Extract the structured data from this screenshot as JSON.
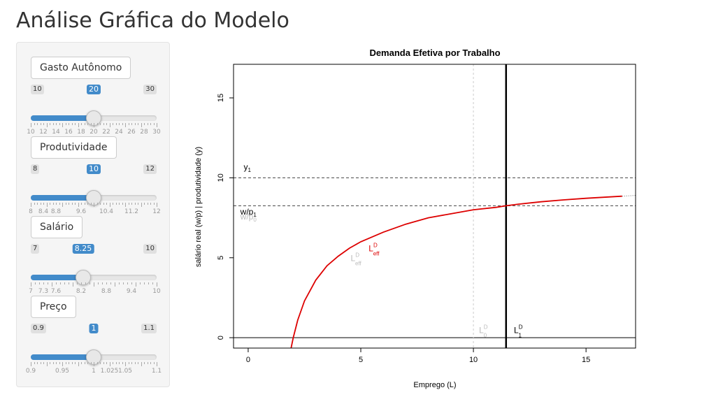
{
  "page": {
    "title": "Análise Gráfica do Modelo"
  },
  "sliders": [
    {
      "label": "Gasto Autônomo",
      "min": 10,
      "max": 30,
      "value": 20,
      "min_label": "10",
      "max_label": "30",
      "value_label": "20",
      "tick_labels": [
        [
          "10",
          10
        ],
        [
          "12",
          12
        ],
        [
          "14",
          14
        ],
        [
          "16",
          16
        ],
        [
          "18",
          18
        ],
        [
          "20",
          20
        ],
        [
          "22",
          22
        ],
        [
          "24",
          24
        ],
        [
          "26",
          26
        ],
        [
          "28",
          28
        ],
        [
          "30",
          30
        ]
      ],
      "minor_ticks": 40
    },
    {
      "label": "Produtividade",
      "min": 8,
      "max": 12,
      "value": 10,
      "min_label": "8",
      "max_label": "12",
      "value_label": "10",
      "tick_labels": [
        [
          "8",
          8
        ],
        [
          "8.4",
          8.4
        ],
        [
          "8.8",
          8.8
        ],
        [
          "9.6",
          9.6
        ],
        [
          "10.4",
          10.4
        ],
        [
          "11.2",
          11.2
        ],
        [
          "12",
          12
        ]
      ],
      "minor_ticks": 40
    },
    {
      "label": "Salário",
      "min": 7,
      "max": 10,
      "value": 8.25,
      "min_label": "7",
      "max_label": "10",
      "value_label": "8.25",
      "tick_labels": [
        [
          "7",
          7
        ],
        [
          "7.3",
          7.3
        ],
        [
          "7.6",
          7.6
        ],
        [
          "8.2",
          8.2
        ],
        [
          "8.8",
          8.8
        ],
        [
          "9.4",
          9.4
        ],
        [
          "10",
          10
        ]
      ],
      "minor_ticks": 30
    },
    {
      "label": "Preço",
      "min": 0.9,
      "max": 1.1,
      "value": 1,
      "min_label": "0.9",
      "max_label": "1.1",
      "value_label": "1",
      "tick_labels": [
        [
          "0.9",
          0.9
        ],
        [
          "0.95",
          0.95
        ],
        [
          "1",
          1.0
        ],
        [
          "1.025",
          1.025
        ],
        [
          "1.05",
          1.05
        ],
        [
          "1.1",
          1.1
        ]
      ],
      "minor_ticks": 40
    }
  ],
  "chart_data": {
    "type": "line",
    "title": "Demanda Efetiva por Trabalho",
    "xlabel": "Emprego (L)",
    "ylabel": "salário real (w/p) | produtividade (y)",
    "xlim": [
      -0.65,
      17.2
    ],
    "ylim": [
      -0.65,
      17.1
    ],
    "xticks": [
      0,
      5,
      10,
      15
    ],
    "yticks": [
      0,
      5,
      10,
      15
    ],
    "series": [
      {
        "color": "#dd0000",
        "points": [
          [
            1.9,
            -0.7
          ],
          [
            2.0,
            0.0
          ],
          [
            2.2,
            1.1
          ],
          [
            2.5,
            2.3
          ],
          [
            3.0,
            3.6
          ],
          [
            3.5,
            4.5
          ],
          [
            4.0,
            5.1
          ],
          [
            4.5,
            5.6
          ],
          [
            5.0,
            6.0
          ],
          [
            6.0,
            6.6
          ],
          [
            7.0,
            7.1
          ],
          [
            8.0,
            7.5
          ],
          [
            9.0,
            7.75
          ],
          [
            10.0,
            8.0
          ],
          [
            11.0,
            8.15
          ],
          [
            11.45,
            8.25
          ],
          [
            12.0,
            8.35
          ],
          [
            13.0,
            8.5
          ],
          [
            14.0,
            8.62
          ],
          [
            15.0,
            8.72
          ],
          [
            16.0,
            8.8
          ],
          [
            16.6,
            8.85
          ]
        ]
      }
    ],
    "tail_dotted": [
      [
        16.6,
        8.85
      ],
      [
        17.2,
        8.9
      ]
    ],
    "hlines": [
      {
        "y": 10.0,
        "style": "dashed",
        "color": "#444444"
      },
      {
        "y": 8.25,
        "style": "dashed",
        "color": "#444444"
      },
      {
        "y": 0,
        "style": "solid",
        "color": "#000000"
      }
    ],
    "vlines": [
      {
        "x": 10.0,
        "style": "dotted",
        "color": "#cccccc"
      },
      {
        "x": 11.45,
        "style": "solid",
        "color": "#000000"
      }
    ],
    "annotations": {
      "y1": {
        "text": "y",
        "sub": "1",
        "x": -0.2,
        "y": 10.5,
        "color": "#000000"
      },
      "wp1": {
        "text": "w/p",
        "sub": "1",
        "x": -0.35,
        "y": 7.7,
        "color": "#000000"
      },
      "wp0": {
        "text": "w/p",
        "sub": "0",
        "x": -0.35,
        "y": 7.4,
        "color": "#bbbbbb"
      },
      "ld_eff_grey": {
        "text": "L",
        "sup": "D",
        "sub": "eff",
        "x": 4.55,
        "y": 4.8,
        "color": "#bbbbbb"
      },
      "ld_eff_red": {
        "text": "L",
        "sup": "D",
        "sub": "eff",
        "x": 5.35,
        "y": 5.4,
        "color": "#dd0000"
      },
      "ld0": {
        "text": "L",
        "sup": "D",
        "sub": "0",
        "x": 10.25,
        "y": 0.3,
        "color": "#bbbbbb"
      },
      "ld1": {
        "text": "L",
        "sup": "D",
        "sub": "1",
        "x": 11.8,
        "y": 0.3,
        "color": "#000000"
      }
    }
  }
}
